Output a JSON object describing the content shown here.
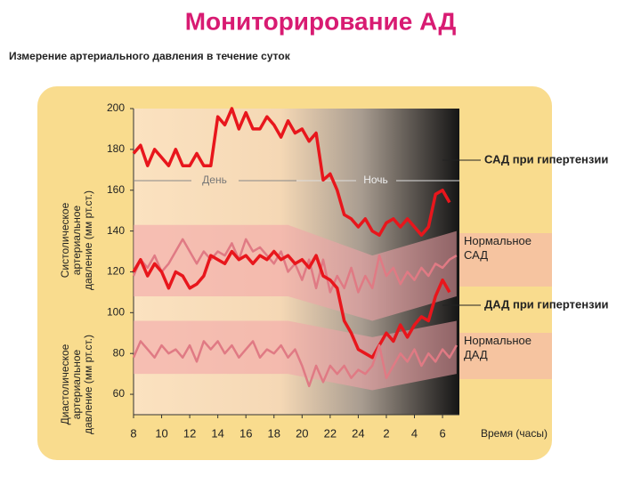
{
  "title": "Мониторирование АД",
  "chart_data": {
    "type": "line",
    "title": "Измерение артериального давления в течение суток",
    "ylabel_top": [
      "Систолическое",
      "артериальное",
      "давление (мм рт.ст.)"
    ],
    "ylabel_bottom": [
      "Диастолическое",
      "артериальное",
      "давление (мм рт.ст.)"
    ],
    "xlabel": "Время (часы)",
    "annotations": [
      "День",
      "Ночь"
    ],
    "x": [
      8,
      8.5,
      9,
      9.5,
      10,
      10.5,
      11,
      11.5,
      12,
      12.5,
      13,
      13.5,
      14,
      14.5,
      15,
      15.5,
      16,
      16.5,
      17,
      17.5,
      18,
      18.5,
      19,
      19.5,
      20,
      20.5,
      21,
      21.5,
      22,
      22.5,
      23,
      23.5,
      24,
      24.5,
      25,
      25.5,
      26,
      26.5,
      27,
      27.5,
      28,
      28.5,
      29,
      29.5,
      30,
      30.5,
      31
    ],
    "series": [
      {
        "name": "САД при гипертензии",
        "color": "#e8161c",
        "values": [
          178,
          182,
          172,
          180,
          176,
          172,
          180,
          172,
          172,
          178,
          172,
          172,
          196,
          192,
          200,
          190,
          198,
          190,
          190,
          196,
          192,
          186,
          194,
          188,
          190,
          184,
          188,
          165,
          168,
          160,
          148,
          146,
          142,
          146,
          140,
          138,
          144,
          146,
          142,
          146,
          142,
          138,
          142,
          158,
          160,
          154,
          null
        ]
      },
      {
        "name": "Нормальное САД",
        "color": "#e07a84",
        "values": [
          118,
          126,
          122,
          128,
          120,
          124,
          130,
          136,
          130,
          124,
          130,
          126,
          130,
          128,
          134,
          126,
          136,
          130,
          132,
          128,
          124,
          130,
          120,
          124,
          116,
          126,
          112,
          126,
          110,
          118,
          112,
          122,
          110,
          118,
          112,
          128,
          118,
          122,
          114,
          120,
          116,
          122,
          118,
          124,
          122,
          126,
          128
        ]
      },
      {
        "name": "ДАД при гипертензии",
        "color": "#e8161c",
        "values": [
          120,
          126,
          118,
          124,
          120,
          112,
          120,
          118,
          112,
          114,
          118,
          128,
          126,
          124,
          130,
          126,
          128,
          124,
          128,
          126,
          130,
          126,
          128,
          124,
          126,
          122,
          128,
          118,
          116,
          112,
          96,
          90,
          82,
          80,
          78,
          84,
          90,
          86,
          94,
          88,
          94,
          98,
          96,
          108,
          116,
          110,
          null
        ]
      },
      {
        "name": "Нормальное ДАД",
        "color": "#e07a84",
        "values": [
          78,
          86,
          82,
          78,
          84,
          80,
          82,
          78,
          84,
          76,
          86,
          82,
          86,
          80,
          84,
          78,
          82,
          86,
          78,
          82,
          80,
          84,
          78,
          82,
          74,
          64,
          74,
          66,
          74,
          70,
          74,
          68,
          72,
          70,
          74,
          84,
          68,
          74,
          80,
          76,
          82,
          74,
          80,
          76,
          82,
          78,
          84
        ]
      }
    ],
    "band_x": [
      8,
      19,
      25,
      31
    ],
    "bands": [
      {
        "color": "#f3a3a8",
        "upper": [
          143,
          143,
          128,
          140
        ],
        "lower": [
          108,
          108,
          96,
          108
        ]
      },
      {
        "color": "#f3a3a8",
        "upper": [
          96,
          96,
          88,
          96
        ],
        "lower": [
          70,
          70,
          62,
          70
        ]
      }
    ],
    "xlim": [
      8,
      31.2
    ],
    "ylim": [
      50,
      200
    ],
    "xticks": [
      8,
      10,
      12,
      14,
      16,
      18,
      20,
      22,
      24,
      {
        "value": 26,
        "label": "2"
      },
      {
        "value": 28,
        "label": "4"
      },
      {
        "value": 30,
        "label": "6"
      }
    ],
    "yticks": [
      60,
      80,
      100,
      120,
      140,
      160,
      180,
      200
    ]
  }
}
